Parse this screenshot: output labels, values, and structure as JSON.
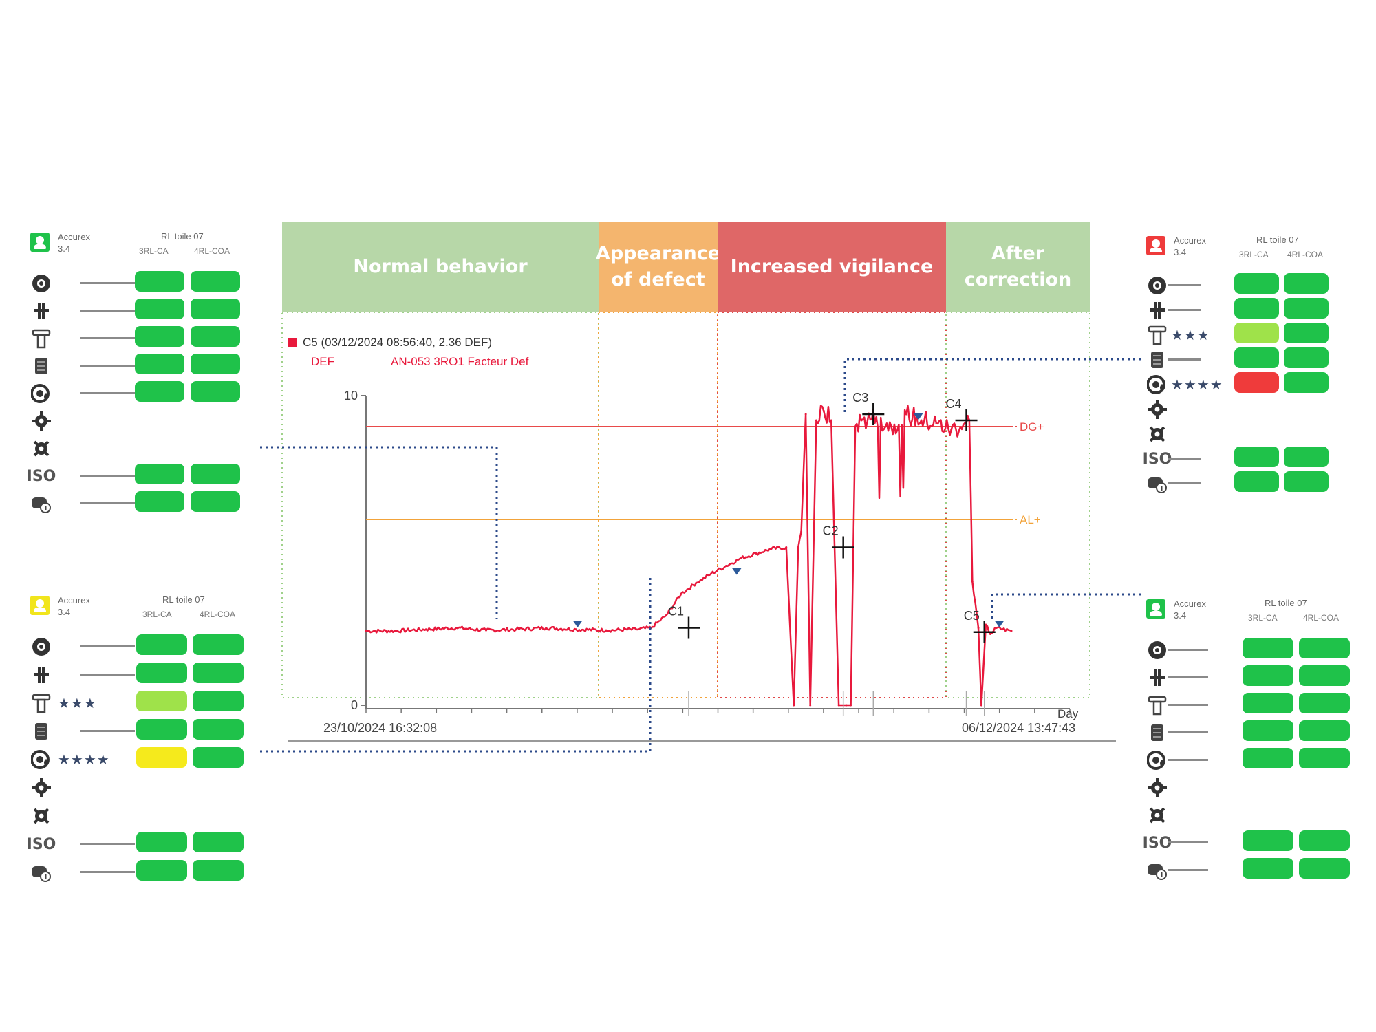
{
  "phases": [
    {
      "label": "Normal behavior",
      "color": "#b7d7a8"
    },
    {
      "label": "Appearance of defect",
      "color": "#f4b56e"
    },
    {
      "label": "Increased vigilance",
      "color": "#df6767"
    },
    {
      "label": "After correction",
      "color": "#b7d7a8"
    }
  ],
  "legend": {
    "title": "C5 (03/12/2024 08:56:40, 2.36 DEF)",
    "unit": "DEF",
    "series_name": "AN-053 3RO1 Facteur Def",
    "color": "#e8193c"
  },
  "axis": {
    "x_start_label": "23/10/2024 16:32:08",
    "x_end_label": "06/12/2024 13:47:43",
    "x_unit": "Day"
  },
  "chart_data": {
    "type": "line",
    "ylim": [
      0,
      10
    ],
    "yticks": [
      "0",
      "10"
    ],
    "x_range": [
      "23/10/2024 16:32:08",
      "06/12/2024 13:47:43"
    ],
    "x_unit": "Day",
    "series": [
      {
        "name": "AN-053 3RO1 Facteur Def",
        "color": "#e8193c",
        "x": [
          0,
          2,
          4,
          6,
          8,
          10,
          12,
          14,
          16,
          18,
          19,
          20,
          21,
          22,
          23,
          24,
          25,
          26,
          27,
          28,
          28.5,
          28.8,
          29,
          29.3,
          29.6,
          30,
          30.5,
          31,
          31.5,
          32,
          32.3,
          32.6,
          33,
          34,
          35,
          36,
          37,
          38,
          39,
          40,
          40.2,
          40.4,
          40.8,
          41,
          41.3,
          41.6,
          42,
          43
        ],
        "values": [
          2.4,
          2.4,
          2.45,
          2.5,
          2.42,
          2.45,
          2.5,
          2.45,
          2.42,
          2.45,
          2.5,
          2.9,
          3.6,
          3.95,
          4.25,
          4.5,
          4.75,
          4.9,
          5.05,
          5.1,
          0,
          5.1,
          5.6,
          9.4,
          0,
          9.2,
          9.5,
          9.2,
          0,
          0,
          0,
          9.0,
          9.2,
          9.3,
          9.0,
          9.4,
          9.2,
          9.1,
          8.9,
          9.1,
          9.2,
          4.0,
          2.5,
          0,
          2.6,
          2.3,
          2.5,
          2.4
        ]
      }
    ],
    "reference_lines": [
      {
        "label": "DG+",
        "value": 9.0,
        "color": "#e84a4a"
      },
      {
        "label": "AL+",
        "value": 6.0,
        "color": "#f2a33a"
      }
    ],
    "cursors": [
      {
        "label": "C1",
        "x": 21.5,
        "y": 2.5
      },
      {
        "label": "C2",
        "x": 31.8,
        "y": 5.1
      },
      {
        "label": "C3",
        "x": 33.8,
        "y": 9.4
      },
      {
        "label": "C4",
        "x": 40.0,
        "y": 9.2
      },
      {
        "label": "C5",
        "x": 41.2,
        "y": 2.36
      }
    ],
    "markers": [
      {
        "x": 14.1,
        "y": 2.6
      },
      {
        "x": 24.7,
        "y": 4.3
      },
      {
        "x": 36.8,
        "y": 9.3
      },
      {
        "x": 42.2,
        "y": 2.6
      }
    ],
    "grid": false
  },
  "panels": [
    {
      "id": "top-left",
      "device_color": "#1fc24a",
      "device": "Accurex",
      "version": "3.4",
      "title": "RL toile 07",
      "col1": "3RL-CA",
      "col2": "4RL-COA",
      "rows": [
        {
          "icon": "target-icon",
          "stars": "",
          "c1": "#1fc24a",
          "c2": "#1fc24a"
        },
        {
          "icon": "coupling-icon",
          "stars": "",
          "c1": "#1fc24a",
          "c2": "#1fc24a"
        },
        {
          "icon": "bolt-icon",
          "stars": "",
          "c1": "#1fc24a",
          "c2": "#1fc24a"
        },
        {
          "icon": "shaft-icon",
          "stars": "",
          "c1": "#1fc24a",
          "c2": "#1fc24a"
        },
        {
          "icon": "bearing-icon",
          "stars": "",
          "c1": "#1fc24a",
          "c2": "#1fc24a"
        },
        {
          "icon": "gear-icon",
          "stars": "",
          "c1": "",
          "c2": ""
        },
        {
          "icon": "cog-icon",
          "stars": "",
          "c1": "",
          "c2": ""
        },
        {
          "icon": "iso-icon",
          "iso": "ISO",
          "stars": "",
          "c1": "#1fc24a",
          "c2": "#1fc24a"
        },
        {
          "icon": "motor-info-icon",
          "stars": "",
          "c1": "#1fc24a",
          "c2": "#1fc24a"
        }
      ]
    },
    {
      "id": "bottom-left",
      "device_color": "#f1e51c",
      "device": "Accurex",
      "version": "3.4",
      "title": "RL toile 07",
      "col1": "3RL-CA",
      "col2": "4RL-COA",
      "rows": [
        {
          "icon": "target-icon",
          "stars": "",
          "c1": "#1fc24a",
          "c2": "#1fc24a"
        },
        {
          "icon": "coupling-icon",
          "stars": "",
          "c1": "#1fc24a",
          "c2": "#1fc24a"
        },
        {
          "icon": "bolt-icon",
          "stars": "★★★",
          "c1": "#9fe24a",
          "c2": "#1fc24a"
        },
        {
          "icon": "shaft-icon",
          "stars": "",
          "c1": "#1fc24a",
          "c2": "#1fc24a"
        },
        {
          "icon": "bearing-icon",
          "stars": "★★★★",
          "c1": "#f5ea1c",
          "c2": "#1fc24a"
        },
        {
          "icon": "gear-icon",
          "stars": "",
          "c1": "",
          "c2": ""
        },
        {
          "icon": "cog-icon",
          "stars": "",
          "c1": "",
          "c2": ""
        },
        {
          "icon": "iso-icon",
          "iso": "ISO",
          "stars": "",
          "c1": "#1fc24a",
          "c2": "#1fc24a"
        },
        {
          "icon": "motor-info-icon",
          "stars": "",
          "c1": "#1fc24a",
          "c2": "#1fc24a"
        }
      ]
    },
    {
      "id": "top-right",
      "device_color": "#ef3b3b",
      "device": "Accurex",
      "version": "3.4",
      "title": "RL toile 07",
      "col1": "3RL-CA",
      "col2": "4RL-COA",
      "rows": [
        {
          "icon": "target-icon",
          "stars": "",
          "c1": "#1fc24a",
          "c2": "#1fc24a"
        },
        {
          "icon": "coupling-icon",
          "stars": "",
          "c1": "#1fc24a",
          "c2": "#1fc24a"
        },
        {
          "icon": "bolt-icon",
          "stars": "★★★",
          "c1": "#9fe24a",
          "c2": "#1fc24a"
        },
        {
          "icon": "shaft-icon",
          "stars": "",
          "c1": "#1fc24a",
          "c2": "#1fc24a"
        },
        {
          "icon": "bearing-icon",
          "stars": "★★★★",
          "c1": "#ef3b3b",
          "c2": "#1fc24a"
        },
        {
          "icon": "gear-icon",
          "stars": "",
          "c1": "",
          "c2": ""
        },
        {
          "icon": "cog-icon",
          "stars": "",
          "c1": "",
          "c2": ""
        },
        {
          "icon": "iso-icon",
          "iso": "ISO",
          "stars": "",
          "c1": "#1fc24a",
          "c2": "#1fc24a"
        },
        {
          "icon": "motor-info-icon",
          "stars": "",
          "c1": "#1fc24a",
          "c2": "#1fc24a"
        }
      ]
    },
    {
      "id": "bottom-right",
      "device_color": "#1fc24a",
      "device": "Accurex",
      "version": "3.4",
      "title": "RL toile 07",
      "col1": "3RL-CA",
      "col2": "4RL-COA",
      "rows": [
        {
          "icon": "target-icon",
          "stars": "",
          "c1": "#1fc24a",
          "c2": "#1fc24a"
        },
        {
          "icon": "coupling-icon",
          "stars": "",
          "c1": "#1fc24a",
          "c2": "#1fc24a"
        },
        {
          "icon": "bolt-icon",
          "stars": "",
          "c1": "#1fc24a",
          "c2": "#1fc24a"
        },
        {
          "icon": "shaft-icon",
          "stars": "",
          "c1": "#1fc24a",
          "c2": "#1fc24a"
        },
        {
          "icon": "bearing-icon",
          "stars": "",
          "c1": "#1fc24a",
          "c2": "#1fc24a"
        },
        {
          "icon": "gear-icon",
          "stars": "",
          "c1": "",
          "c2": ""
        },
        {
          "icon": "cog-icon",
          "stars": "",
          "c1": "",
          "c2": ""
        },
        {
          "icon": "iso-icon",
          "iso": "ISO",
          "stars": "",
          "c1": "#1fc24a",
          "c2": "#1fc24a"
        },
        {
          "icon": "motor-info-icon",
          "stars": "",
          "c1": "#1fc24a",
          "c2": "#1fc24a"
        }
      ]
    }
  ]
}
